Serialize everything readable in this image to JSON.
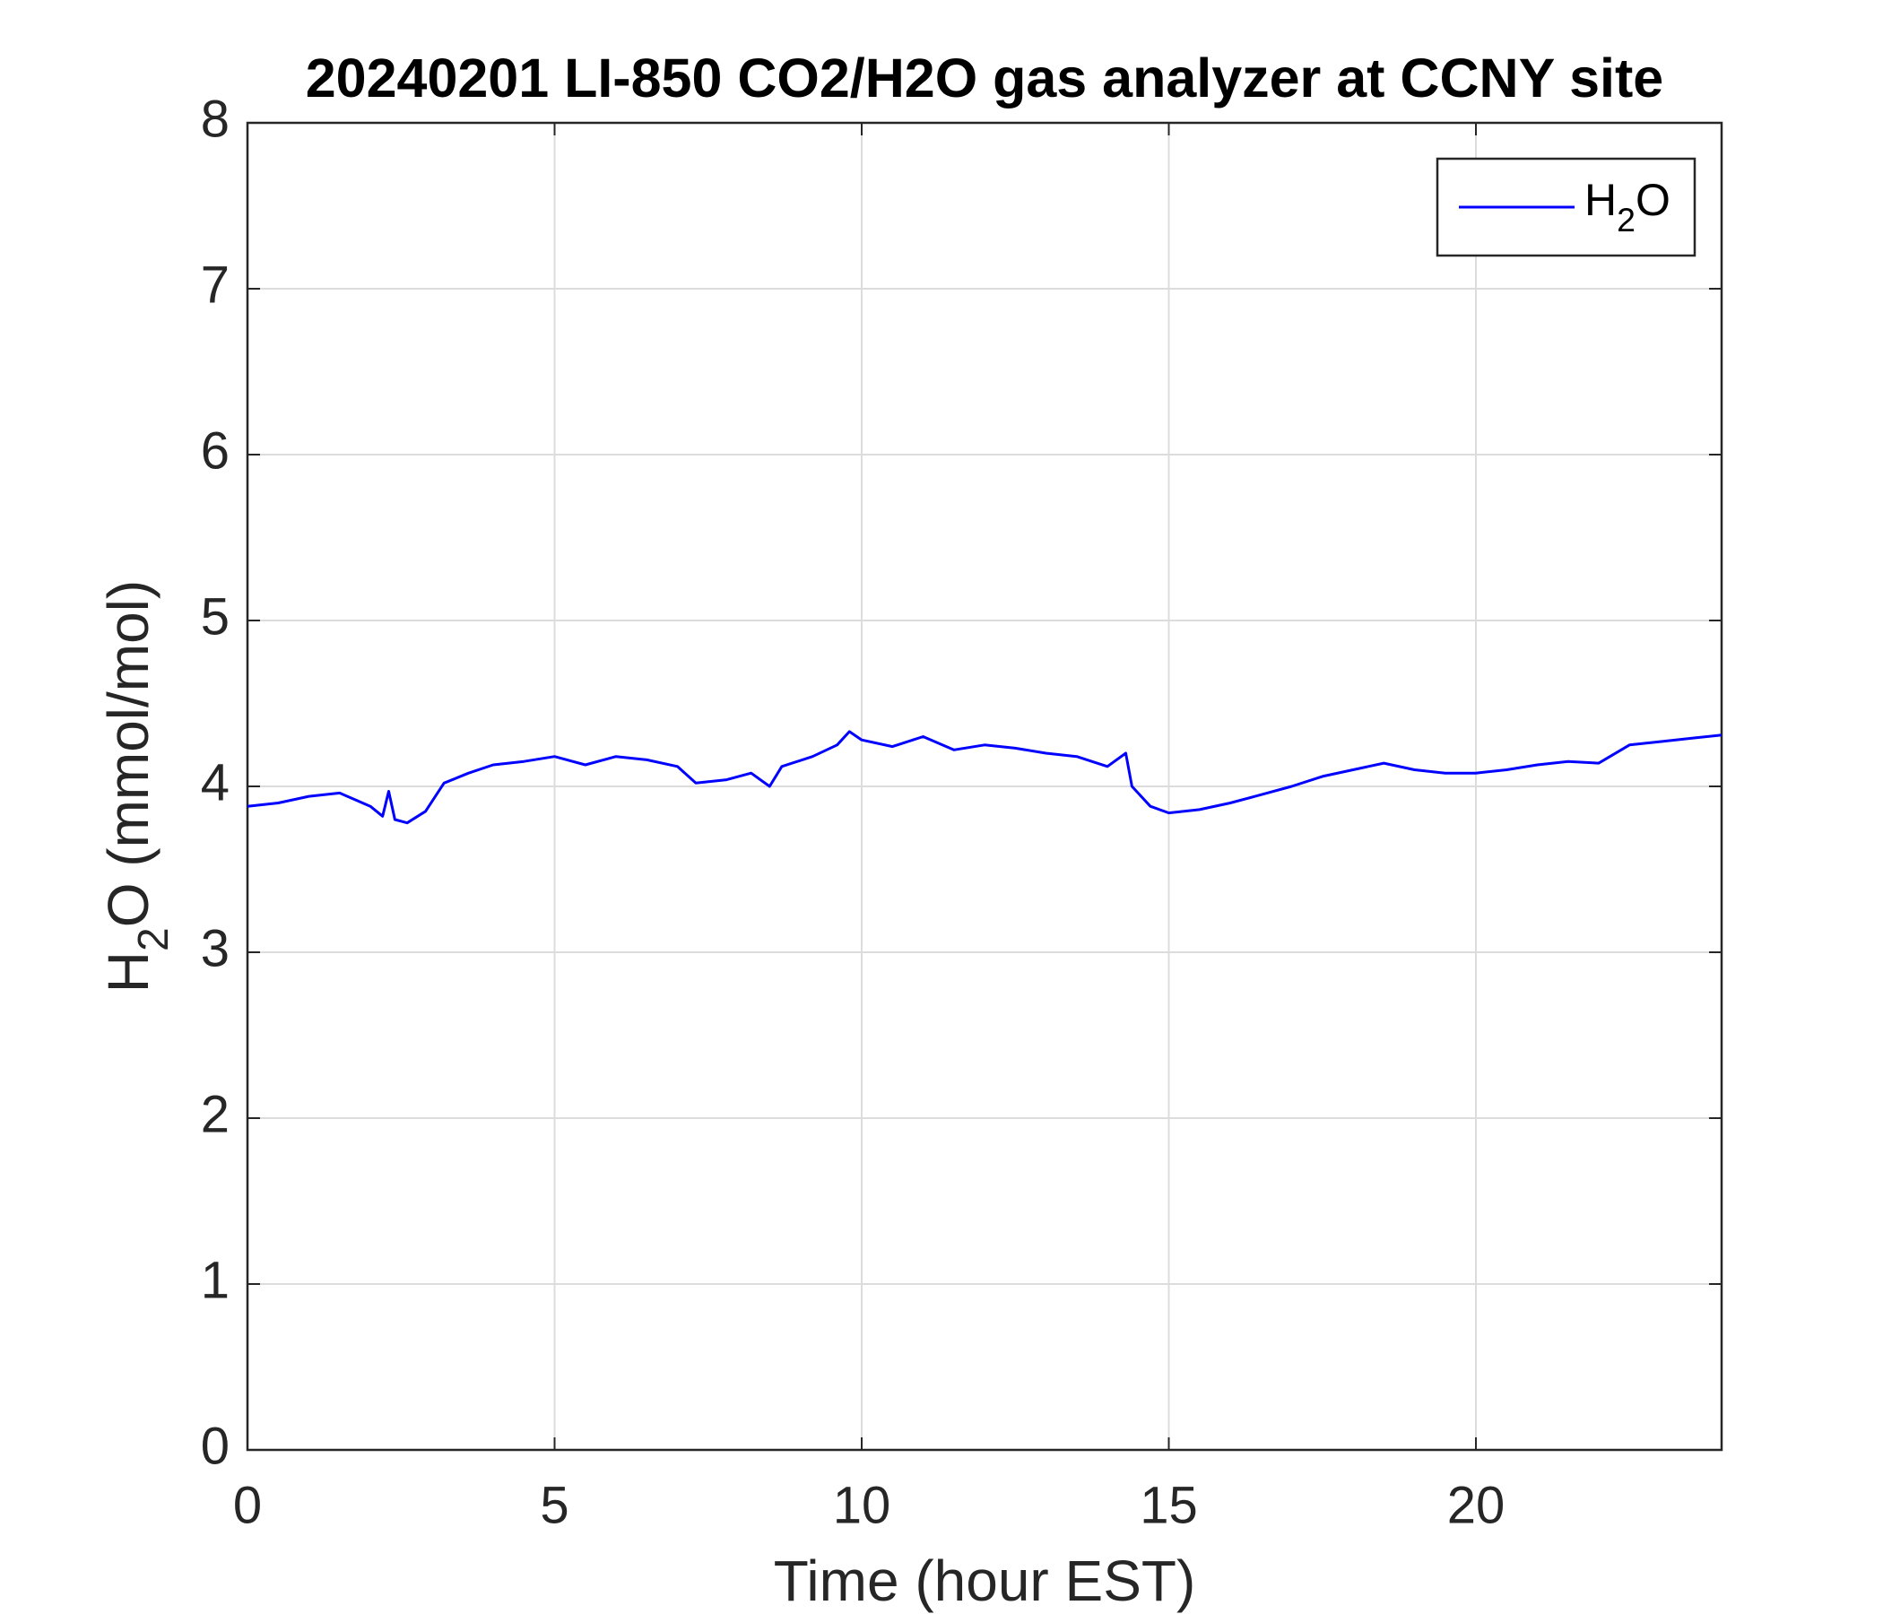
{
  "chart_data": {
    "type": "line",
    "title": "20240201 LI-850 CO2/H2O gas analyzer at CCNY site",
    "xlabel": "Time (hour EST)",
    "ylabel": "H2O (mmol/mol)",
    "x": [
      0,
      0.5,
      1,
      1.5,
      2,
      2.2,
      2.3,
      2.4,
      2.6,
      2.9,
      3.2,
      3.6,
      4,
      4.5,
      5,
      5.5,
      6,
      6.5,
      7,
      7.3,
      7.8,
      8.2,
      8.5,
      8.7,
      9.2,
      9.6,
      9.8,
      10,
      10.5,
      11,
      11.5,
      12,
      12.5,
      13,
      13.5,
      14,
      14.3,
      14.4,
      14.7,
      15,
      15.5,
      16,
      16.5,
      17,
      17.5,
      18,
      18.5,
      19,
      19.5,
      20,
      20.5,
      21,
      21.5,
      22,
      22.5,
      23,
      23.5,
      24
    ],
    "series": [
      {
        "name": "H2O",
        "color": "#0000ff",
        "values": [
          3.88,
          3.9,
          3.94,
          3.96,
          3.88,
          3.82,
          3.97,
          3.8,
          3.78,
          3.85,
          4.02,
          4.08,
          4.13,
          4.15,
          4.18,
          4.13,
          4.18,
          4.16,
          4.12,
          4.02,
          4.04,
          4.08,
          4.0,
          4.12,
          4.18,
          4.25,
          4.33,
          4.28,
          4.24,
          4.3,
          4.22,
          4.25,
          4.23,
          4.2,
          4.18,
          4.12,
          4.2,
          4.0,
          3.88,
          3.84,
          3.86,
          3.9,
          3.95,
          4.0,
          4.06,
          4.1,
          4.14,
          4.1,
          4.08,
          4.08,
          4.1,
          4.13,
          4.15,
          4.14,
          4.25,
          4.27,
          4.29,
          4.31
        ]
      }
    ],
    "xlim": [
      0,
      24
    ],
    "xticks": [
      0,
      5,
      10,
      15,
      20
    ],
    "ylim": [
      0,
      8
    ],
    "yticks": [
      0,
      1,
      2,
      3,
      4,
      5,
      6,
      7,
      8
    ],
    "grid": true,
    "legend": "upper right"
  }
}
